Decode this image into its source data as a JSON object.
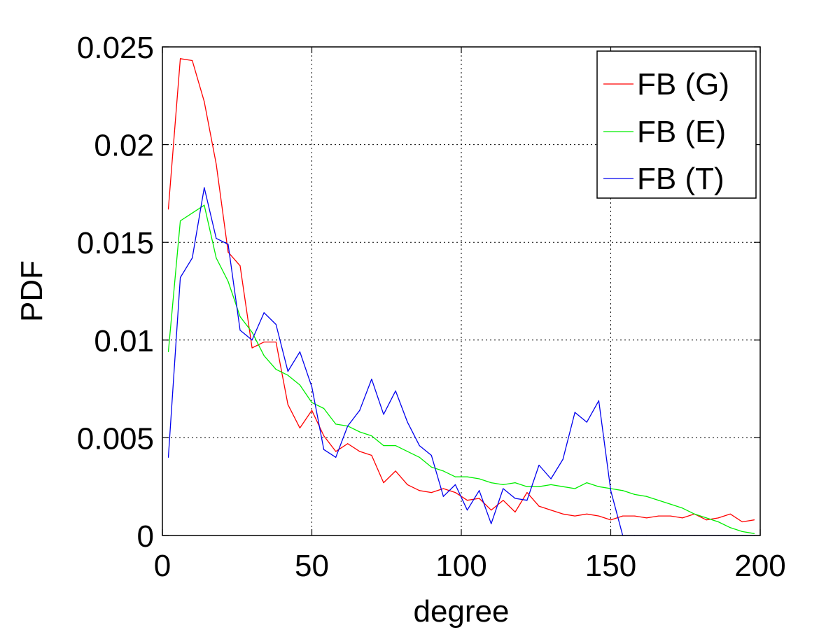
{
  "chart_data": {
    "type": "line",
    "title": "",
    "xlabel": "degree",
    "ylabel": "PDF",
    "xlim": [
      0,
      200
    ],
    "ylim": [
      0,
      0.025
    ],
    "xticks": [
      0,
      50,
      100,
      150,
      200
    ],
    "yticks": [
      0,
      0.005,
      0.01,
      0.015,
      0.02,
      0.025
    ],
    "xtick_labels": [
      "0",
      "50",
      "100",
      "150",
      "200"
    ],
    "ytick_labels": [
      "0",
      "0.005",
      "0.01",
      "0.015",
      "0.02",
      "0.025"
    ],
    "grid": true,
    "legend_position": "top-right",
    "series": [
      {
        "name": "FB (G)",
        "color": "#ff0000",
        "x": [
          2,
          6,
          10,
          14,
          18,
          22,
          26,
          30,
          34,
          38,
          42,
          46,
          50,
          54,
          58,
          62,
          66,
          70,
          74,
          78,
          82,
          86,
          90,
          94,
          98,
          102,
          106,
          110,
          114,
          118,
          122,
          126,
          130,
          134,
          138,
          142,
          146,
          150,
          154,
          158,
          162,
          166,
          170,
          174,
          178,
          182,
          186,
          190,
          194,
          198
        ],
        "y": [
          0.0167,
          0.0244,
          0.0243,
          0.0222,
          0.019,
          0.0145,
          0.0138,
          0.0096,
          0.0099,
          0.0099,
          0.0067,
          0.0055,
          0.0064,
          0.0051,
          0.0043,
          0.0047,
          0.0043,
          0.0041,
          0.0027,
          0.0033,
          0.0026,
          0.0023,
          0.0022,
          0.0024,
          0.0022,
          0.0018,
          0.0019,
          0.0013,
          0.0018,
          0.0012,
          0.0022,
          0.0015,
          0.0013,
          0.0011,
          0.001,
          0.0011,
          0.001,
          0.0008,
          0.001,
          0.001,
          0.0009,
          0.001,
          0.001,
          0.0009,
          0.0011,
          0.0008,
          0.0009,
          0.0011,
          0.0007,
          0.0008
        ]
      },
      {
        "name": "FB (E)",
        "color": "#00ee00",
        "x": [
          2,
          6,
          10,
          14,
          18,
          22,
          26,
          30,
          34,
          38,
          42,
          46,
          50,
          54,
          58,
          62,
          66,
          70,
          74,
          78,
          82,
          86,
          90,
          94,
          98,
          102,
          106,
          110,
          114,
          118,
          122,
          126,
          130,
          134,
          138,
          142,
          146,
          150,
          154,
          158,
          162,
          166,
          170,
          174,
          178,
          182,
          186,
          190,
          194,
          198
        ],
        "y": [
          0.0094,
          0.0161,
          0.0165,
          0.0169,
          0.0142,
          0.013,
          0.0112,
          0.0104,
          0.0092,
          0.0085,
          0.0082,
          0.0077,
          0.0068,
          0.0065,
          0.0057,
          0.0056,
          0.0053,
          0.0051,
          0.0046,
          0.0046,
          0.0043,
          0.004,
          0.0035,
          0.0033,
          0.003,
          0.003,
          0.0029,
          0.0027,
          0.0026,
          0.0027,
          0.0025,
          0.0025,
          0.0026,
          0.0025,
          0.0024,
          0.0027,
          0.0025,
          0.0024,
          0.0023,
          0.0021,
          0.002,
          0.0018,
          0.0016,
          0.0014,
          0.0011,
          0.0009,
          0.0007,
          0.0004,
          0.0002,
          0.0001
        ]
      },
      {
        "name": "FB (T)",
        "color": "#0000ee",
        "x": [
          2,
          6,
          10,
          14,
          18,
          22,
          26,
          30,
          34,
          38,
          42,
          46,
          50,
          54,
          58,
          62,
          66,
          70,
          74,
          78,
          82,
          86,
          90,
          94,
          98,
          102,
          106,
          110,
          114,
          118,
          122,
          126,
          130,
          134,
          138,
          142,
          146,
          150,
          154,
          158,
          162,
          166,
          170,
          174,
          178,
          182,
          186,
          190,
          194,
          198
        ],
        "y": [
          0.004,
          0.0132,
          0.0142,
          0.0178,
          0.0152,
          0.0149,
          0.0105,
          0.01,
          0.0114,
          0.0108,
          0.0084,
          0.0094,
          0.0076,
          0.0044,
          0.004,
          0.0056,
          0.0064,
          0.008,
          0.0062,
          0.0074,
          0.0058,
          0.0046,
          0.0041,
          0.002,
          0.0026,
          0.0013,
          0.0023,
          0.0006,
          0.0024,
          0.0019,
          0.0018,
          0.0036,
          0.0029,
          0.0039,
          0.0063,
          0.0058,
          0.0069,
          0.0023,
          0,
          0,
          0,
          0,
          0,
          0,
          0,
          0,
          0,
          0,
          0,
          0
        ]
      }
    ]
  }
}
